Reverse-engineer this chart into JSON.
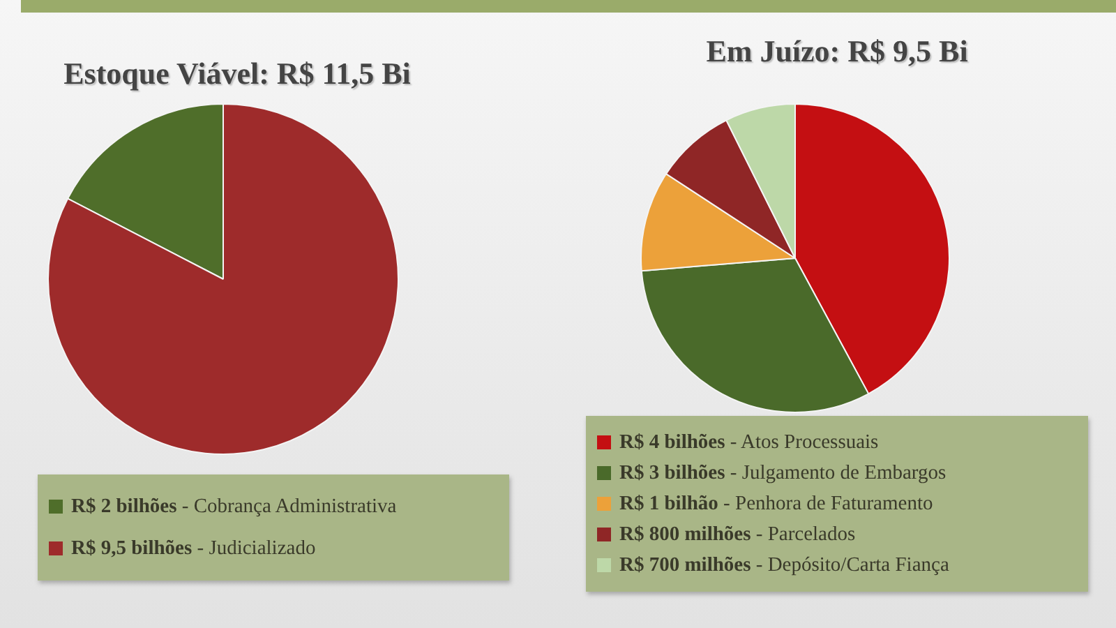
{
  "chart_data": [
    {
      "type": "pie",
      "title": "Estoque Viável: R$ 11,5 Bi",
      "categories": [
        "R$ 2 bilhões - Cobrança Administrativa",
        "R$ 9,5 bilhões - Judicializado"
      ],
      "values": [
        2,
        9.5
      ],
      "colors": [
        "#4f6e2a",
        "#9e2b2b"
      ],
      "legend": "bottom"
    },
    {
      "type": "pie",
      "title": "Em Juízo: R$ 9,5 Bi",
      "categories": [
        "R$ 4 bilhões - Atos Processuais",
        "R$ 3 bilhões - Julgamento de Embargos",
        "R$ 1 bilhão - Penhora de Faturamento",
        "R$ 800 milhões - Parcelados",
        "R$ 700 milhões - Depósito/Carta Fiança"
      ],
      "values": [
        4,
        3,
        1,
        0.8,
        0.7
      ],
      "colors": [
        "#c40f12",
        "#4a6a2a",
        "#eca13a",
        "#8f2626",
        "#bdd8a8"
      ],
      "legend": "bottom"
    }
  ]
}
